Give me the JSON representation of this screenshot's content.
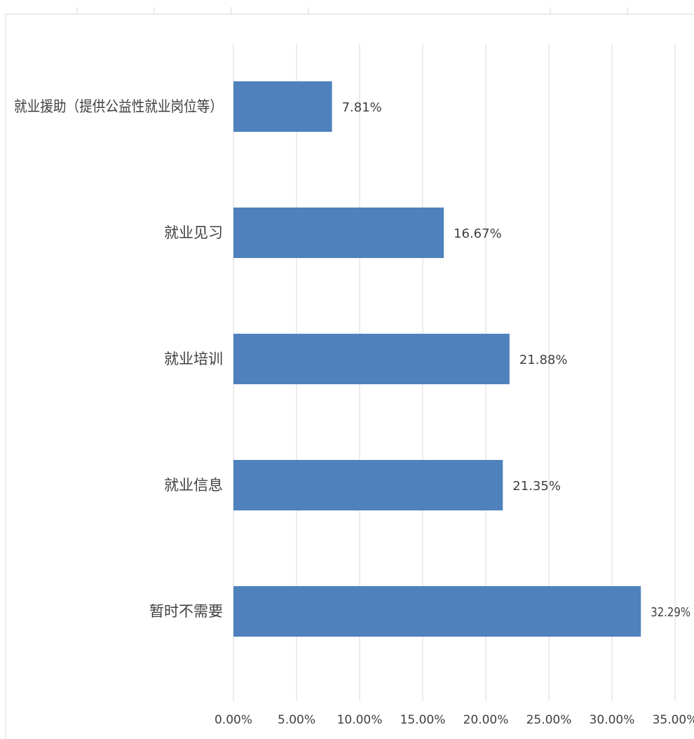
{
  "chart_data": {
    "type": "bar",
    "orientation": "horizontal",
    "categories": [
      "就业援助（提供公益性就业岗位等）",
      "就业见习",
      "就业培训",
      "就业信息",
      "暂时不需要"
    ],
    "values": [
      7.81,
      16.67,
      21.88,
      21.35,
      32.29
    ],
    "value_labels": [
      "7.81%",
      "16.67%",
      "21.88%",
      "21.35%",
      "32.29%"
    ],
    "x_ticks": [
      "0.00%",
      "5.00%",
      "10.00%",
      "15.00%",
      "20.00%",
      "25.00%",
      "30.00%",
      "35.00%"
    ],
    "xlim": [
      0,
      35
    ],
    "title": "",
    "xlabel": "",
    "ylabel": "",
    "grid": true,
    "legend": "none",
    "colors": {
      "bar": "#4f81bd",
      "grid": "#d9d9d9",
      "text": "#404040",
      "frame": "#d9d9d9"
    }
  }
}
